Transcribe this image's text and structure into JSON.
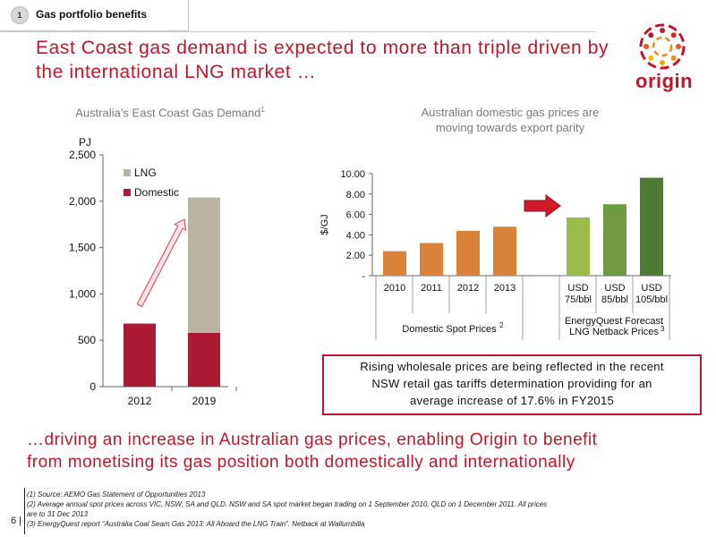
{
  "header": {
    "section_number": "1",
    "section_title": "Gas portfolio benefits"
  },
  "headline": {
    "line1": "East Coast gas demand is expected to more than triple driven by",
    "line2": "the international LNG market …"
  },
  "logo": {
    "text": "origin",
    "brand_color": "#c0162b",
    "accent_colors": [
      "#c0162b",
      "#f08a1c",
      "#f5c000"
    ]
  },
  "chart_data": [
    {
      "type": "bar",
      "title": "Australia’s East Coast Gas Demand",
      "title_superscript": "1",
      "ylabel": "PJ",
      "ylim": [
        0,
        2500
      ],
      "yticks": [
        "0",
        "500",
        "1,000",
        "1,500",
        "2,000",
        "2,500"
      ],
      "categories": [
        "2012",
        "2019"
      ],
      "stacked": true,
      "series": [
        {
          "name": "Domestic",
          "color": "#ab1a35",
          "values": [
            680,
            580
          ]
        },
        {
          "name": "LNG",
          "color": "#b9b3a1",
          "values": [
            0,
            1460
          ]
        }
      ],
      "legend": [
        "LNG",
        "Domestic"
      ],
      "legend_placement": "top-right",
      "annotation": "growth-arrow"
    },
    {
      "type": "bar",
      "title_lines": [
        "Australian domestic gas prices are",
        "moving towards export parity"
      ],
      "ylabel": "$/GJ",
      "ylim": [
        0,
        10
      ],
      "yticks": [
        "-",
        "2.00",
        "4.00",
        "6.00",
        "8.00",
        "10.00"
      ],
      "categories": [
        "2010",
        "2011",
        "2012",
        "2013",
        "USD 75/bbl",
        "USD 85/bbl",
        "USD 105/bbl"
      ],
      "category_lines": [
        [
          "2010"
        ],
        [
          "2011"
        ],
        [
          "2012"
        ],
        [
          "2013"
        ],
        [
          "USD",
          "75/bbl"
        ],
        [
          "USD",
          "85/bbl"
        ],
        [
          "USD",
          "105/bbl"
        ]
      ],
      "values": [
        2.4,
        3.2,
        4.4,
        4.8,
        5.7,
        7.0,
        9.6
      ],
      "colors": [
        "#d9823a",
        "#d9823a",
        "#d9823a",
        "#d9823a",
        "#9dbb4a",
        "#6f9a3f",
        "#4e7a34"
      ],
      "groups": [
        {
          "label": "Domestic Spot Prices",
          "superscript": "2"
        },
        {
          "label_lines": [
            "EnergyQuest Forecast",
            "LNG Netback Prices"
          ],
          "superscript": "3"
        }
      ],
      "annotation": "red-arrow-right"
    }
  ],
  "callout": {
    "line1": "Rising wholesale prices are being reflected in the recent",
    "line2": "NSW retail gas tariffs determination providing for an",
    "line3": "average increase of 17.6% in FY2015"
  },
  "bottom": {
    "line1": "…driving an increase in Australian gas prices, enabling Origin to benefit",
    "line2": "from monetising its gas position both domestically and internationally"
  },
  "footnotes": [
    "(1)   Source: AEMO Gas Statement of Opportunities 2013",
    "(2)   Average annual spot prices across VIC, NSW, SA and QLD. NSW and SA spot market began trading on 1 September 2010, QLD on 1 December 2011. All prices",
    "        are to 31 Dec 2013",
    "(3)   EnergyQuest report “Australia Coal Seam Gas 2013: All Aboard the LNG Train”.  Netback at Wallumbilla"
  ],
  "page_number": "6 |"
}
